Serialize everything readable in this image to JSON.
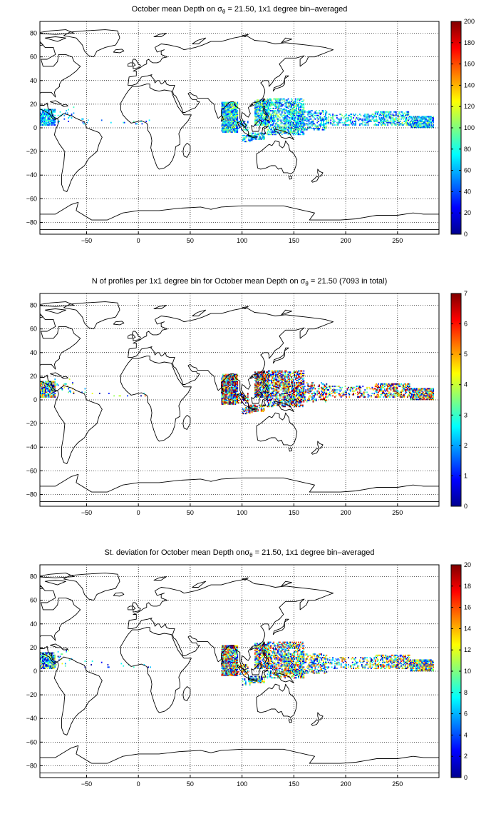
{
  "figure": {
    "panels": [
      {
        "title_prefix": "October mean Depth on ",
        "title_symbol": "σ",
        "title_sub": "θ",
        "title_suffix": " = 21.50, 1x1 degree bin–averaged",
        "colorbar": {
          "min": 0,
          "max": 200,
          "step": 20,
          "tick_labels": [
            "0",
            "20",
            "40",
            "60",
            "80",
            "100",
            "120",
            "140",
            "160",
            "180",
            "200"
          ]
        }
      },
      {
        "title_prefix": "N of profiles per 1x1 degree bin for October mean Depth on ",
        "title_symbol": "σ",
        "title_sub": "θ",
        "title_suffix": " = 21.50 (7093 in total)",
        "colorbar": {
          "min": 0,
          "max": 7,
          "step": 1,
          "tick_labels": [
            "0",
            "1",
            "2",
            "3",
            "4",
            "5",
            "6",
            "7"
          ]
        }
      },
      {
        "title_prefix": "St. deviation for October mean Depth on",
        "title_symbol": "σ",
        "title_sub": "θ",
        "title_suffix": " = 21.50, 1x1 degree bin–averaged",
        "colorbar": {
          "min": 0,
          "max": 20,
          "step": 2,
          "tick_labels": [
            "0",
            "2",
            "4",
            "6",
            "8",
            "10",
            "12",
            "14",
            "16",
            "18",
            "20"
          ]
        }
      }
    ],
    "map_axes": {
      "xlim": [
        -95,
        290
      ],
      "ylim": [
        -90,
        90
      ],
      "x_ticks": [
        -50,
        0,
        50,
        100,
        150,
        200,
        250
      ],
      "x_tick_labels": [
        "−50",
        "0",
        "50",
        "100",
        "150",
        "200",
        "250"
      ],
      "y_ticks": [
        -80,
        -60,
        -40,
        -20,
        0,
        20,
        40,
        60,
        80
      ],
      "y_tick_labels": [
        "−80",
        "−60",
        "−40",
        "−20",
        "0",
        "20",
        "40",
        "60",
        "80"
      ],
      "grid": true
    },
    "colormap": "jet",
    "colors": {
      "coastline": "#000000",
      "background": "#ffffff"
    }
  }
}
